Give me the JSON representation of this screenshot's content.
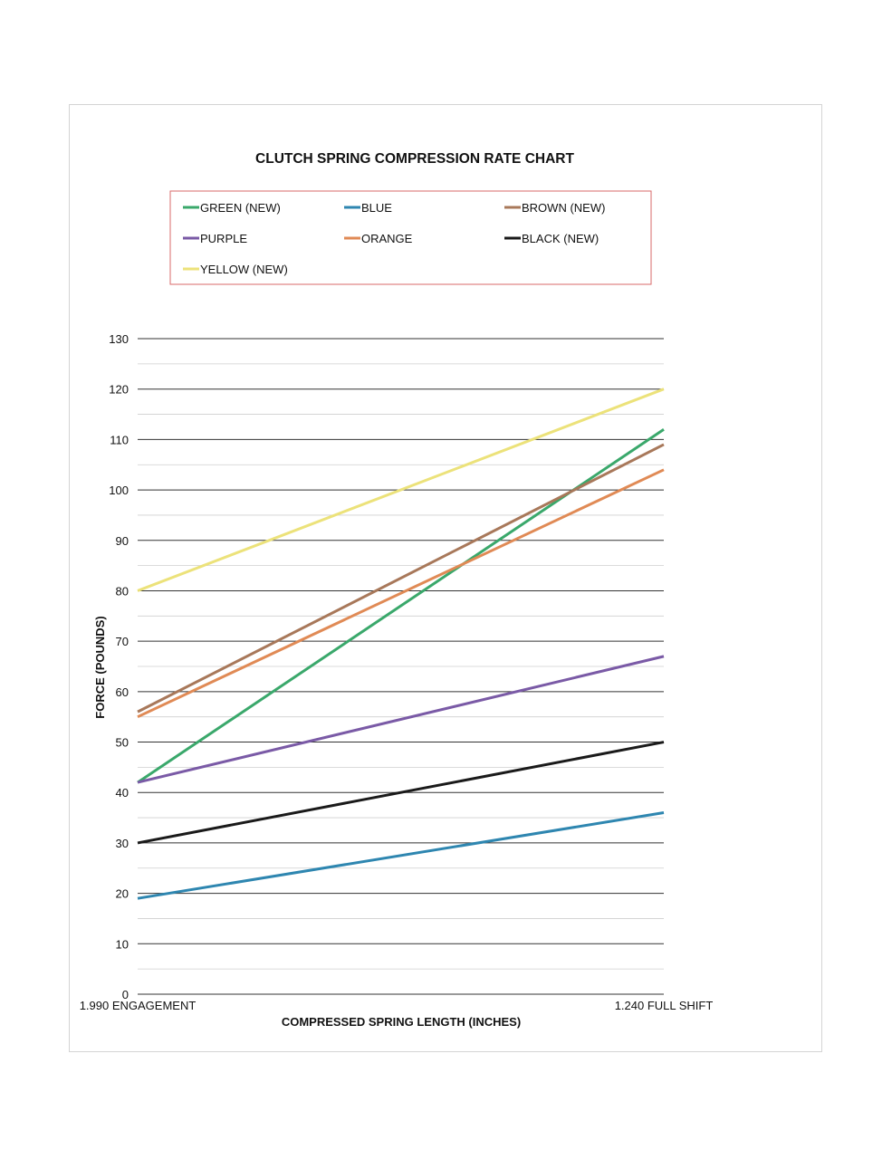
{
  "chart_data": {
    "type": "line",
    "title": "CLUTCH SPRING COMPRESSION RATE CHART",
    "xlabel": "COMPRESSED SPRING LENGTH (INCHES)",
    "ylabel": "FORCE (POUNDS)",
    "categories": [
      "1.990 ENGAGEMENT",
      "1.240 FULL SHIFT"
    ],
    "ylim": [
      0,
      130
    ],
    "y_ticks": [
      "0",
      "10",
      "20",
      "30",
      "40",
      "50",
      "60",
      "70",
      "80",
      "90",
      "100",
      "110",
      "120",
      "130"
    ],
    "grid": true,
    "legend_position": "top",
    "series": [
      {
        "name": "GREEN  (NEW)",
        "color": "#3aa86b",
        "values": [
          42,
          112
        ]
      },
      {
        "name": "BLUE",
        "color": "#2e86b0",
        "values": [
          19,
          36
        ]
      },
      {
        "name": "BROWN (NEW)",
        "color": "#a8785a",
        "values": [
          56,
          109
        ]
      },
      {
        "name": "PURPLE",
        "color": "#7a5aa6",
        "values": [
          42,
          67
        ]
      },
      {
        "name": "ORANGE",
        "color": "#e08a55",
        "values": [
          55,
          104
        ]
      },
      {
        "name": "BLACK  (NEW)",
        "color": "#1a1a1a",
        "values": [
          30,
          50
        ]
      },
      {
        "name": "YELLOW  (NEW)",
        "color": "#ece27a",
        "values": [
          80,
          120
        ]
      }
    ],
    "legend_border_color": "#d96a6a",
    "grid_major_color": "#333333",
    "grid_minor_color": "#cfcfcf"
  }
}
